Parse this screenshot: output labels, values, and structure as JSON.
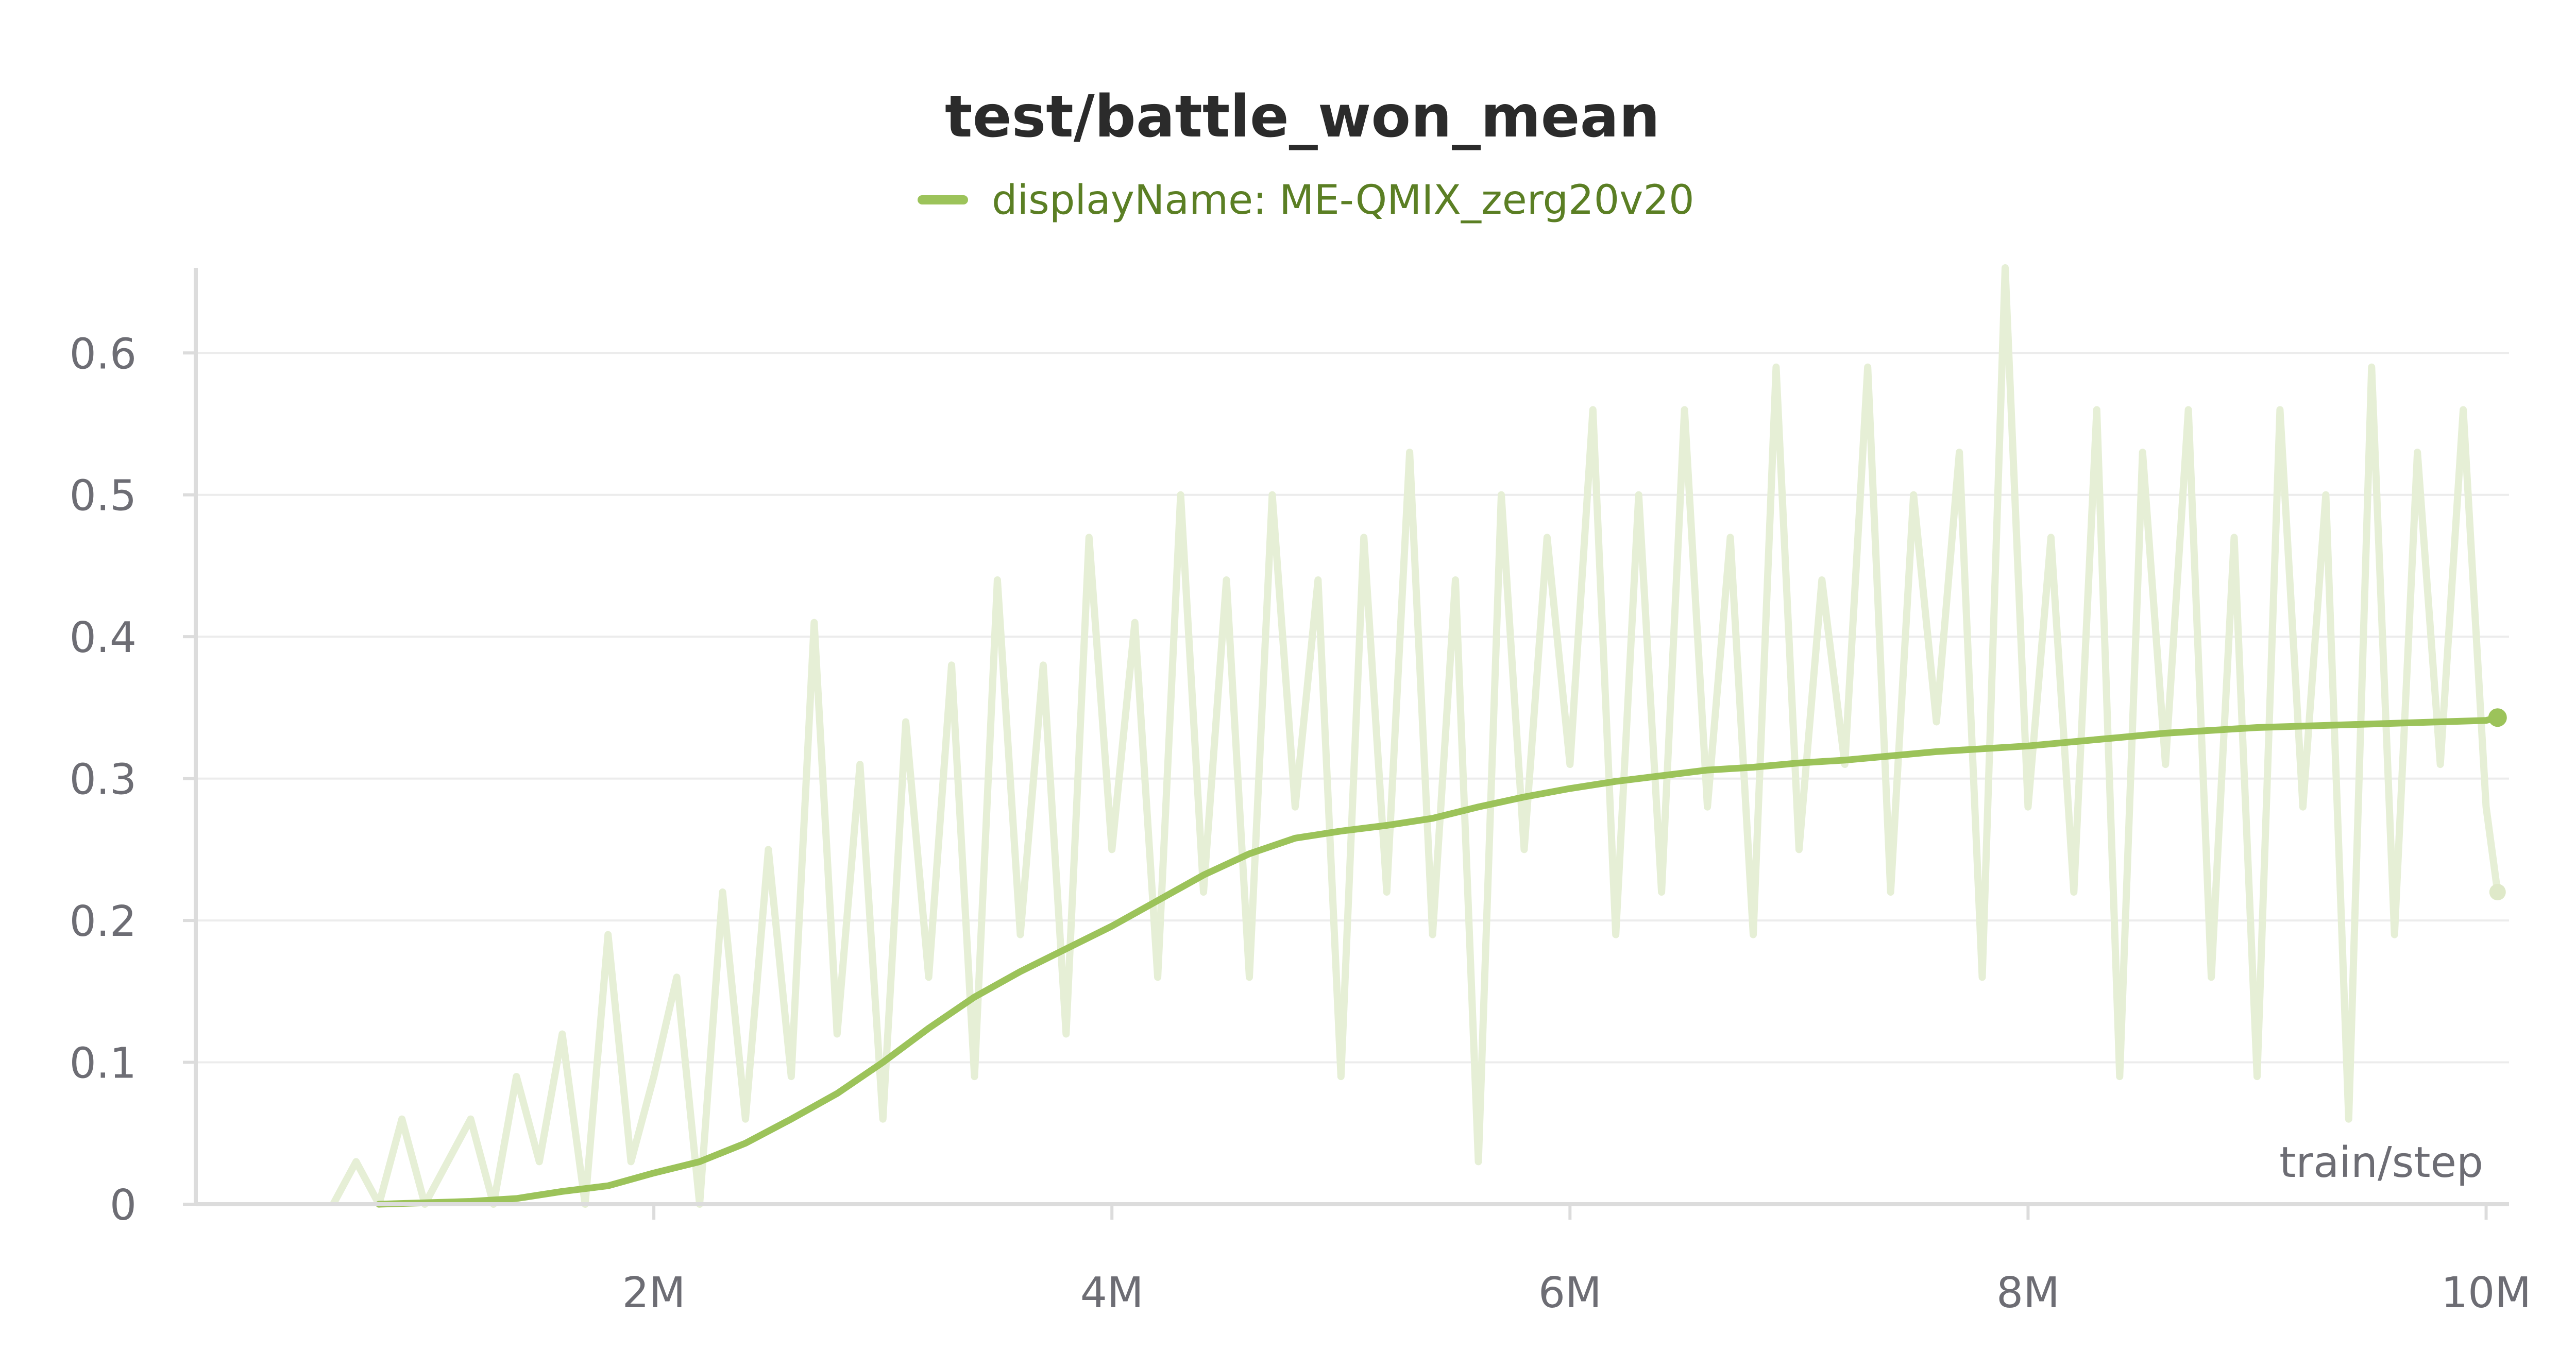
{
  "chart_data": {
    "type": "line",
    "title": "test/battle_won_mean",
    "xlabel": "train/step",
    "ylabel": "",
    "xlim": [
      0,
      10100000
    ],
    "ylim": [
      0,
      0.66
    ],
    "x_ticks": [
      {
        "value": 2000000,
        "label": "2M"
      },
      {
        "value": 4000000,
        "label": "4M"
      },
      {
        "value": 6000000,
        "label": "6M"
      },
      {
        "value": 8000000,
        "label": "8M"
      },
      {
        "value": 10000000,
        "label": "10M"
      }
    ],
    "y_ticks": [
      {
        "value": 0,
        "label": "0"
      },
      {
        "value": 0.1,
        "label": "0.1"
      },
      {
        "value": 0.2,
        "label": "0.2"
      },
      {
        "value": 0.3,
        "label": "0.3"
      },
      {
        "value": 0.4,
        "label": "0.4"
      },
      {
        "value": 0.5,
        "label": "0.5"
      },
      {
        "value": 0.6,
        "label": "0.6"
      }
    ],
    "grid": true,
    "legend": {
      "placement": "top-center",
      "label": "displayName: ME-QMIX_zerg20v20"
    },
    "colors": {
      "smoothed": "#9cc35a",
      "raw": "#e6efd6",
      "axis": "#dcdcdc",
      "grid": "#ececec"
    },
    "series": [
      {
        "name": "displayName: ME-QMIX_zerg20v20",
        "kind": "smoothed",
        "x": [
          800000,
          1000000,
          1200000,
          1400000,
          1600000,
          1800000,
          2000000,
          2200000,
          2400000,
          2600000,
          2800000,
          3000000,
          3200000,
          3400000,
          3600000,
          3800000,
          4000000,
          4200000,
          4400000,
          4600000,
          4800000,
          5000000,
          5200000,
          5400000,
          5600000,
          5800000,
          6000000,
          6200000,
          6400000,
          6600000,
          6800000,
          7000000,
          7200000,
          7400000,
          7600000,
          7800000,
          8000000,
          8200000,
          8400000,
          8600000,
          8800000,
          9000000,
          9200000,
          9400000,
          9600000,
          9800000,
          10000000,
          10050000
        ],
        "y": [
          0.0,
          0.001,
          0.002,
          0.004,
          0.009,
          0.013,
          0.022,
          0.03,
          0.043,
          0.06,
          0.078,
          0.1,
          0.124,
          0.146,
          0.164,
          0.18,
          0.196,
          0.214,
          0.232,
          0.247,
          0.258,
          0.263,
          0.267,
          0.272,
          0.28,
          0.287,
          0.293,
          0.298,
          0.302,
          0.306,
          0.308,
          0.311,
          0.313,
          0.316,
          0.319,
          0.321,
          0.323,
          0.326,
          0.329,
          0.332,
          0.334,
          0.336,
          0.337,
          0.338,
          0.339,
          0.34,
          0.341,
          0.343
        ]
      },
      {
        "name": "",
        "kind": "raw",
        "x": [
          600000,
          700000,
          800000,
          900000,
          1000000,
          1100000,
          1200000,
          1300000,
          1400000,
          1500000,
          1600000,
          1700000,
          1800000,
          1900000,
          2000000,
          2100000,
          2200000,
          2300000,
          2400000,
          2500000,
          2600000,
          2700000,
          2800000,
          2900000,
          3000000,
          3100000,
          3200000,
          3300000,
          3400000,
          3500000,
          3600000,
          3700000,
          3800000,
          3900000,
          4000000,
          4100000,
          4200000,
          4300000,
          4400000,
          4500000,
          4600000,
          4700000,
          4800000,
          4900000,
          5000000,
          5100000,
          5200000,
          5300000,
          5400000,
          5500000,
          5600000,
          5700000,
          5800000,
          5900000,
          6000000,
          6100000,
          6200000,
          6300000,
          6400000,
          6500000,
          6600000,
          6700000,
          6800000,
          6900000,
          7000000,
          7100000,
          7200000,
          7300000,
          7400000,
          7500000,
          7600000,
          7700000,
          7800000,
          7900000,
          8000000,
          8100000,
          8200000,
          8300000,
          8400000,
          8500000,
          8600000,
          8700000,
          8800000,
          8900000,
          9000000,
          9100000,
          9200000,
          9300000,
          9400000,
          9500000,
          9600000,
          9700000,
          9800000,
          9900000,
          10000000,
          10050000
        ],
        "y": [
          0.0,
          0.03,
          0.0,
          0.06,
          0.0,
          0.03,
          0.06,
          0.0,
          0.09,
          0.03,
          0.12,
          0.0,
          0.19,
          0.03,
          0.09,
          0.16,
          0.0,
          0.22,
          0.06,
          0.25,
          0.09,
          0.41,
          0.12,
          0.31,
          0.06,
          0.34,
          0.16,
          0.38,
          0.09,
          0.44,
          0.19,
          0.38,
          0.12,
          0.47,
          0.25,
          0.41,
          0.16,
          0.5,
          0.22,
          0.44,
          0.16,
          0.5,
          0.28,
          0.44,
          0.09,
          0.47,
          0.22,
          0.53,
          0.19,
          0.44,
          0.03,
          0.5,
          0.25,
          0.47,
          0.31,
          0.56,
          0.19,
          0.5,
          0.22,
          0.56,
          0.28,
          0.47,
          0.19,
          0.59,
          0.25,
          0.44,
          0.31,
          0.59,
          0.22,
          0.5,
          0.34,
          0.53,
          0.16,
          0.66,
          0.28,
          0.47,
          0.22,
          0.56,
          0.09,
          0.53,
          0.31,
          0.56,
          0.16,
          0.47,
          0.09,
          0.56,
          0.28,
          0.5,
          0.06,
          0.59,
          0.19,
          0.53,
          0.31,
          0.56,
          0.28,
          0.22
        ]
      }
    ]
  }
}
